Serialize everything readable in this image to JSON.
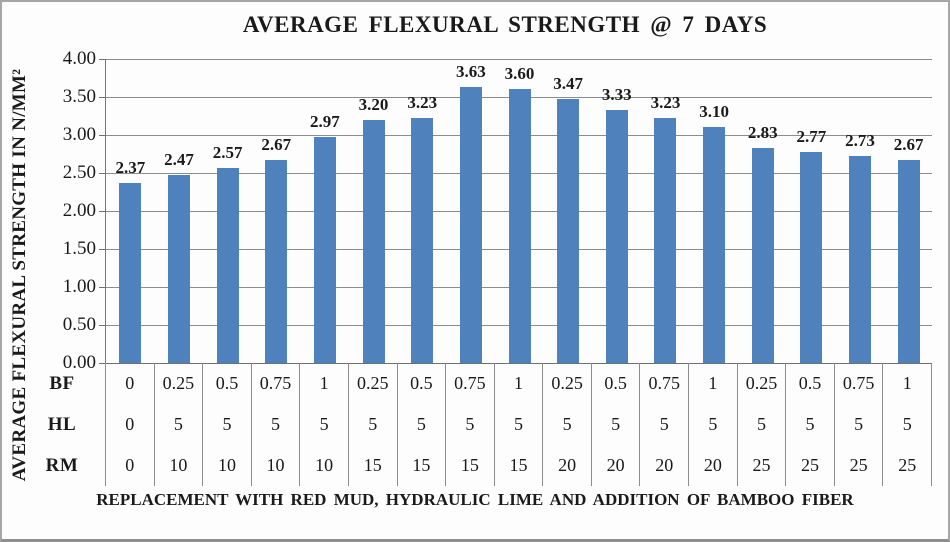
{
  "frame": {
    "background": "#fdfdfd",
    "border_color": "#a6a6a6"
  },
  "chart_data": {
    "type": "bar",
    "title": "AVERAGE FLEXURAL STRENGTH @ 7 DAYS",
    "ylabel": "AVERAGE FLEXURAL STRENGTH IN N/MM²",
    "xlabel": "REPLACEMENT WITH RED MUD, HYDRAULIC LIME AND ADDITION OF BAMBOO FIBER",
    "ylim": [
      0,
      4.0
    ],
    "ytick_step": 0.5,
    "ytick_labels": [
      "4.00",
      "3.50",
      "3.00",
      "2.50",
      "2.00",
      "1.50",
      "1.00",
      "0.50",
      "0.00"
    ],
    "grid": true,
    "legend": "none",
    "bar_color": "#4f81bd",
    "gridline_color": "#8c8c8c",
    "values": [
      2.37,
      2.47,
      2.57,
      2.67,
      2.97,
      3.2,
      3.23,
      3.63,
      3.6,
      3.47,
      3.33,
      3.23,
      3.1,
      2.83,
      2.77,
      2.73,
      2.67
    ],
    "value_labels": [
      "2.37",
      "2.47",
      "2.57",
      "2.67",
      "2.97",
      "3.20",
      "3.23",
      "3.63",
      "3.60",
      "3.47",
      "3.33",
      "3.23",
      "3.10",
      "2.83",
      "2.77",
      "2.73",
      "2.67"
    ],
    "category_table": {
      "row_labels": [
        "BF",
        "HL",
        "RM"
      ],
      "rows": [
        [
          "0",
          "0.25",
          "0.5",
          "0.75",
          "1",
          "0.25",
          "0.5",
          "0.75",
          "1",
          "0.25",
          "0.5",
          "0.75",
          "1",
          "0.25",
          "0.5",
          "0.75",
          "1"
        ],
        [
          "0",
          "5",
          "5",
          "5",
          "5",
          "5",
          "5",
          "5",
          "5",
          "5",
          "5",
          "5",
          "5",
          "5",
          "5",
          "5",
          "5"
        ],
        [
          "0",
          "10",
          "10",
          "10",
          "10",
          "15",
          "15",
          "15",
          "15",
          "20",
          "20",
          "20",
          "20",
          "25",
          "25",
          "25",
          "25"
        ]
      ]
    }
  }
}
